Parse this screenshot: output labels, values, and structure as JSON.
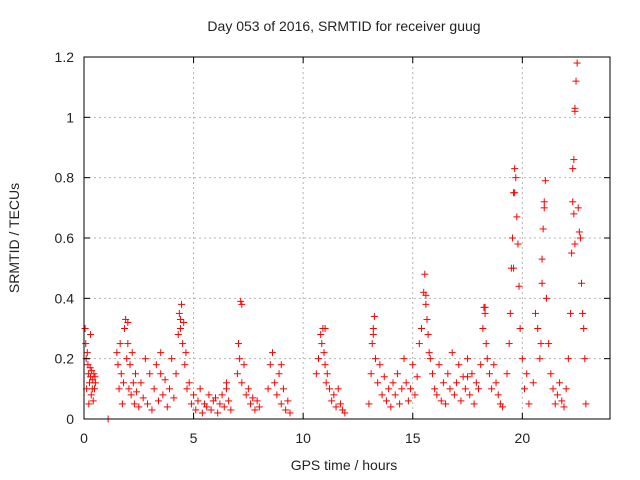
{
  "chart_data": {
    "type": "scatter",
    "title": "Day 053 of 2016, SRMTID for receiver guug",
    "xlabel": "GPS time / hours",
    "ylabel": "SRMTID / TECUs",
    "xlim": [
      0,
      24
    ],
    "ylim": [
      0,
      1.2
    ],
    "xticks": [
      0,
      5,
      10,
      15,
      20
    ],
    "yticks": [
      0,
      0.2,
      0.4,
      0.6,
      0.8,
      1,
      1.2
    ],
    "xtick_labels": [
      "0",
      "5",
      "10",
      "15",
      "20"
    ],
    "ytick_labels": [
      "0",
      "0.2",
      "0.4",
      "0.6",
      "0.8",
      "1",
      "1.2"
    ],
    "grid": true,
    "marker": "plus",
    "color": "#ff0000",
    "series": [
      {
        "x": [
          0.05,
          0.08,
          0.1,
          0.12,
          0.15,
          0.18,
          0.2,
          0.22,
          0.25,
          0.28,
          0.3,
          0.33,
          0.35,
          0.38,
          0.4,
          0.42,
          0.45,
          0.48,
          0.5,
          0.52,
          1.1,
          1.5,
          1.55,
          1.6,
          1.65,
          1.7,
          1.75,
          1.8,
          1.85,
          1.9,
          1.95,
          2.0,
          2.05,
          2.1,
          2.15,
          2.2,
          2.25,
          2.3,
          2.35,
          2.4,
          2.5,
          2.6,
          2.7,
          2.8,
          2.9,
          3.0,
          3.1,
          3.2,
          3.3,
          3.4,
          3.5,
          3.6,
          3.7,
          3.8,
          3.9,
          4.0,
          4.1,
          4.2,
          4.3,
          4.35,
          4.4,
          4.45,
          4.5,
          4.55,
          4.6,
          4.65,
          4.7,
          4.8,
          4.9,
          5.0,
          5.1,
          5.2,
          5.3,
          5.4,
          5.5,
          5.6,
          5.7,
          5.8,
          5.9,
          6.0,
          6.1,
          6.2,
          6.3,
          6.4,
          6.5,
          6.6,
          6.7,
          7.0,
          7.05,
          7.1,
          7.15,
          7.2,
          7.3,
          7.4,
          7.5,
          7.6,
          7.7,
          7.8,
          7.9,
          8.0,
          8.4,
          8.5,
          8.6,
          8.7,
          8.8,
          8.9,
          9.0,
          9.1,
          9.2,
          9.3,
          9.4,
          10.6,
          10.7,
          10.8,
          10.85,
          10.9,
          10.95,
          11.0,
          11.05,
          11.1,
          11.2,
          11.3,
          11.4,
          11.5,
          11.6,
          11.7,
          11.8,
          11.9,
          13.0,
          13.1,
          13.15,
          13.2,
          13.25,
          13.3,
          13.4,
          13.5,
          13.6,
          13.7,
          13.8,
          13.9,
          14.0,
          14.1,
          14.2,
          14.3,
          14.4,
          14.5,
          14.6,
          14.7,
          14.8,
          14.9,
          15.0,
          15.1,
          15.2,
          15.3,
          15.4,
          15.5,
          15.55,
          15.6,
          15.65,
          15.7,
          15.75,
          15.8,
          15.9,
          16.0,
          16.1,
          16.2,
          16.3,
          16.4,
          16.5,
          16.6,
          16.7,
          16.8,
          16.9,
          17.0,
          17.1,
          17.2,
          17.3,
          17.4,
          17.5,
          17.6,
          17.7,
          17.8,
          17.9,
          18.0,
          18.1,
          18.2,
          18.25,
          18.3,
          18.35,
          18.4,
          18.5,
          18.6,
          18.7,
          18.8,
          18.9,
          19.0,
          19.1,
          19.3,
          19.4,
          19.45,
          19.5,
          19.55,
          19.6,
          19.65,
          19.7,
          19.75,
          19.8,
          19.85,
          19.9,
          20.0,
          20.1,
          20.2,
          20.3,
          20.5,
          20.6,
          20.7,
          20.8,
          20.85,
          20.9,
          20.95,
          21.0,
          21.05,
          21.1,
          21.2,
          21.3,
          21.4,
          21.5,
          21.6,
          21.7,
          21.8,
          21.9,
          22.0,
          22.1,
          22.2,
          22.25,
          22.3,
          22.35,
          22.4,
          22.45,
          22.5,
          22.55,
          22.6,
          22.65,
          22.7,
          22.75,
          22.8,
          22.85,
          22.9,
          0.3,
          2.0,
          4.4,
          7.2,
          11.0,
          13.2,
          15.6,
          18.3,
          19.6,
          22.4,
          22.35,
          22.3,
          21.0,
          19.65,
          22.4,
          20.9,
          3.5,
          6.5,
          9.0,
          17.5
        ],
        "y": [
          0.3,
          0.25,
          0.2,
          0.1,
          0.22,
          0.18,
          0.15,
          0.05,
          0.12,
          0.17,
          0.14,
          0.08,
          0.16,
          0.1,
          0.13,
          0.06,
          0.15,
          0.1,
          0.14,
          0.12,
          0.0,
          0.22,
          0.18,
          0.1,
          0.25,
          0.15,
          0.05,
          0.12,
          0.3,
          0.33,
          0.2,
          0.25,
          0.1,
          0.18,
          0.08,
          0.22,
          0.12,
          0.05,
          0.15,
          0.09,
          0.04,
          0.12,
          0.07,
          0.2,
          0.05,
          0.15,
          0.03,
          0.1,
          0.18,
          0.06,
          0.22,
          0.08,
          0.13,
          0.04,
          0.1,
          0.2,
          0.07,
          0.15,
          0.28,
          0.35,
          0.3,
          0.38,
          0.25,
          0.32,
          0.18,
          0.22,
          0.1,
          0.12,
          0.05,
          0.08,
          0.03,
          0.06,
          0.1,
          0.02,
          0.05,
          0.04,
          0.08,
          0.03,
          0.06,
          0.07,
          0.02,
          0.05,
          0.08,
          0.04,
          0.1,
          0.06,
          0.03,
          0.15,
          0.25,
          0.2,
          0.39,
          0.12,
          0.18,
          0.08,
          0.1,
          0.05,
          0.07,
          0.03,
          0.06,
          0.04,
          0.1,
          0.18,
          0.22,
          0.12,
          0.08,
          0.15,
          0.05,
          0.1,
          0.03,
          0.06,
          0.02,
          0.15,
          0.2,
          0.28,
          0.25,
          0.3,
          0.22,
          0.18,
          0.12,
          0.15,
          0.1,
          0.06,
          0.08,
          0.04,
          0.1,
          0.05,
          0.03,
          0.02,
          0.05,
          0.15,
          0.25,
          0.3,
          0.34,
          0.2,
          0.12,
          0.18,
          0.08,
          0.14,
          0.06,
          0.1,
          0.04,
          0.12,
          0.08,
          0.15,
          0.05,
          0.1,
          0.2,
          0.12,
          0.06,
          0.1,
          0.18,
          0.08,
          0.14,
          0.25,
          0.3,
          0.42,
          0.48,
          0.38,
          0.33,
          0.28,
          0.22,
          0.2,
          0.15,
          0.1,
          0.08,
          0.18,
          0.06,
          0.12,
          0.05,
          0.15,
          0.1,
          0.22,
          0.08,
          0.12,
          0.18,
          0.06,
          0.14,
          0.1,
          0.2,
          0.08,
          0.15,
          0.05,
          0.12,
          0.1,
          0.18,
          0.3,
          0.37,
          0.35,
          0.25,
          0.2,
          0.15,
          0.1,
          0.18,
          0.12,
          0.08,
          0.05,
          0.04,
          0.15,
          0.25,
          0.35,
          0.5,
          0.6,
          0.75,
          0.83,
          0.8,
          0.67,
          0.58,
          0.44,
          0.3,
          0.2,
          0.1,
          0.15,
          0.05,
          0.12,
          0.35,
          0.3,
          0.2,
          0.25,
          0.53,
          0.63,
          0.72,
          0.79,
          0.4,
          0.25,
          0.15,
          0.1,
          0.05,
          0.08,
          0.12,
          0.06,
          0.04,
          0.1,
          0.2,
          0.35,
          0.55,
          0.72,
          0.86,
          1.02,
          1.12,
          1.18,
          0.7,
          0.62,
          0.6,
          0.45,
          0.35,
          0.3,
          0.2,
          0.05,
          0.28,
          0.32,
          0.33,
          0.38,
          0.3,
          0.28,
          0.41,
          0.37,
          0.5,
          0.58,
          0.68,
          0.83,
          0.7,
          0.75,
          1.03,
          0.45,
          0.15,
          0.12,
          0.18,
          0.14
        ]
      }
    ]
  }
}
